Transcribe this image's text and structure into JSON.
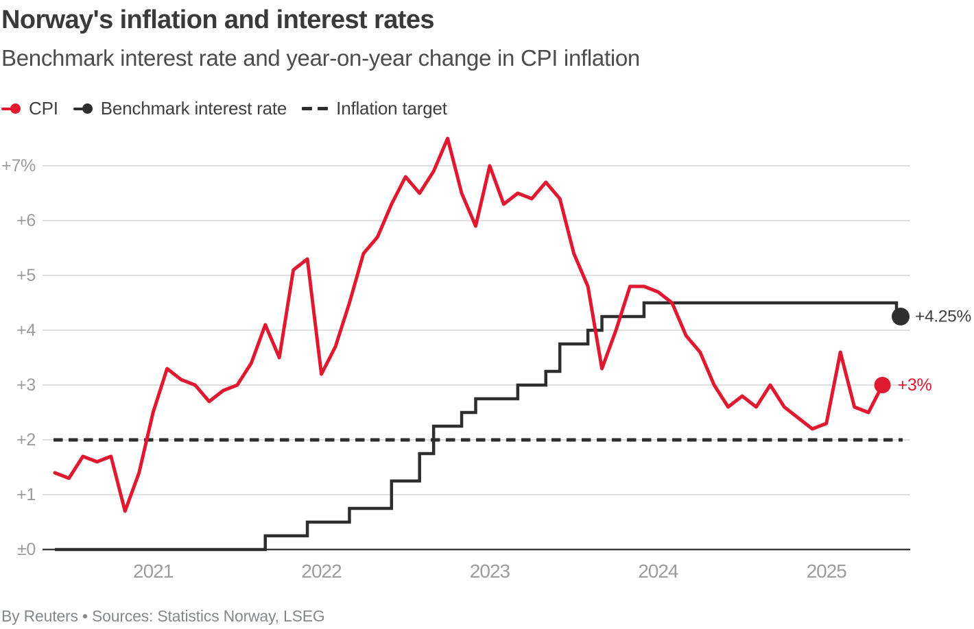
{
  "header": {
    "title": "Norway's inflation and interest rates",
    "subtitle": "Benchmark interest rate and year-on-year change in CPI inflation"
  },
  "legend": {
    "items": [
      {
        "label": "CPI",
        "marker": "line-dot",
        "color": "#e11930"
      },
      {
        "label": "Benchmark interest rate",
        "marker": "line-dot",
        "color": "#2e2e2e"
      },
      {
        "label": "Inflation target",
        "marker": "dashes",
        "color": "#2e2e2e"
      }
    ]
  },
  "footer": {
    "credit": "By Reuters • Sources: Statistics Norway, LSEG"
  },
  "colors": {
    "cpi": "#e11930",
    "rate": "#2e2e2e",
    "target": "#2e2e2e",
    "grid": "#d4d4d4",
    "axis": "#3a3a3a",
    "tick_text": "#9c9c9c",
    "end_label_text": "#3e3e3e"
  },
  "chart_data": {
    "type": "line",
    "title": "Norway's inflation and interest rates",
    "subtitle": "Benchmark interest rate and year-on-year change in CPI inflation",
    "x_unit": "month",
    "x_start": "2020-06",
    "x_end": "2025-06",
    "x_tick_labels": [
      "2021",
      "2022",
      "2023",
      "2024",
      "2025"
    ],
    "y_ticks": [
      {
        "v": 7,
        "label": "+7%"
      },
      {
        "v": 6,
        "label": "+6"
      },
      {
        "v": 5,
        "label": "+5"
      },
      {
        "v": 4,
        "label": "+4"
      },
      {
        "v": 3,
        "label": "+3"
      },
      {
        "v": 2,
        "label": "+2"
      },
      {
        "v": 1,
        "label": "+1"
      },
      {
        "v": 0,
        "label": "±0"
      }
    ],
    "ylim": [
      0,
      7.6
    ],
    "grid": "horizontal",
    "legend_position": "top",
    "series": [
      {
        "name": "CPI",
        "type": "line",
        "color": "#e11930",
        "start": "2020-06",
        "end": "2025-05",
        "end_label": "+3%",
        "values": [
          1.4,
          1.3,
          1.7,
          1.6,
          1.7,
          0.7,
          1.4,
          2.5,
          3.3,
          3.1,
          3.0,
          2.7,
          2.9,
          3.0,
          3.4,
          4.1,
          3.5,
          5.1,
          5.3,
          3.2,
          3.7,
          4.5,
          5.4,
          5.7,
          6.3,
          6.8,
          6.5,
          6.9,
          7.5,
          6.5,
          5.9,
          7.0,
          6.3,
          6.5,
          6.4,
          6.7,
          6.4,
          5.4,
          4.8,
          3.3,
          4.0,
          4.8,
          4.8,
          4.7,
          4.5,
          3.9,
          3.6,
          3.0,
          2.6,
          2.8,
          2.6,
          3.0,
          2.6,
          2.4,
          2.2,
          2.3,
          3.6,
          2.6,
          2.5,
          3.0
        ]
      },
      {
        "name": "Benchmark interest rate",
        "type": "step",
        "color": "#2e2e2e",
        "end_label": "+4.25%",
        "changes": [
          [
            "2020-06",
            0.0
          ],
          [
            "2021-09",
            0.25
          ],
          [
            "2021-12",
            0.5
          ],
          [
            "2022-03",
            0.75
          ],
          [
            "2022-06",
            1.25
          ],
          [
            "2022-08",
            1.75
          ],
          [
            "2022-09",
            2.25
          ],
          [
            "2022-11",
            2.5
          ],
          [
            "2022-12",
            2.75
          ],
          [
            "2023-03",
            3.0
          ],
          [
            "2023-05",
            3.25
          ],
          [
            "2023-06",
            3.75
          ],
          [
            "2023-08",
            4.0
          ],
          [
            "2023-09",
            4.25
          ],
          [
            "2023-12",
            4.5
          ],
          [
            "2025-06",
            4.25
          ]
        ]
      },
      {
        "name": "Inflation target",
        "type": "dashed-constant",
        "color": "#2e2e2e",
        "value": 2
      }
    ]
  }
}
